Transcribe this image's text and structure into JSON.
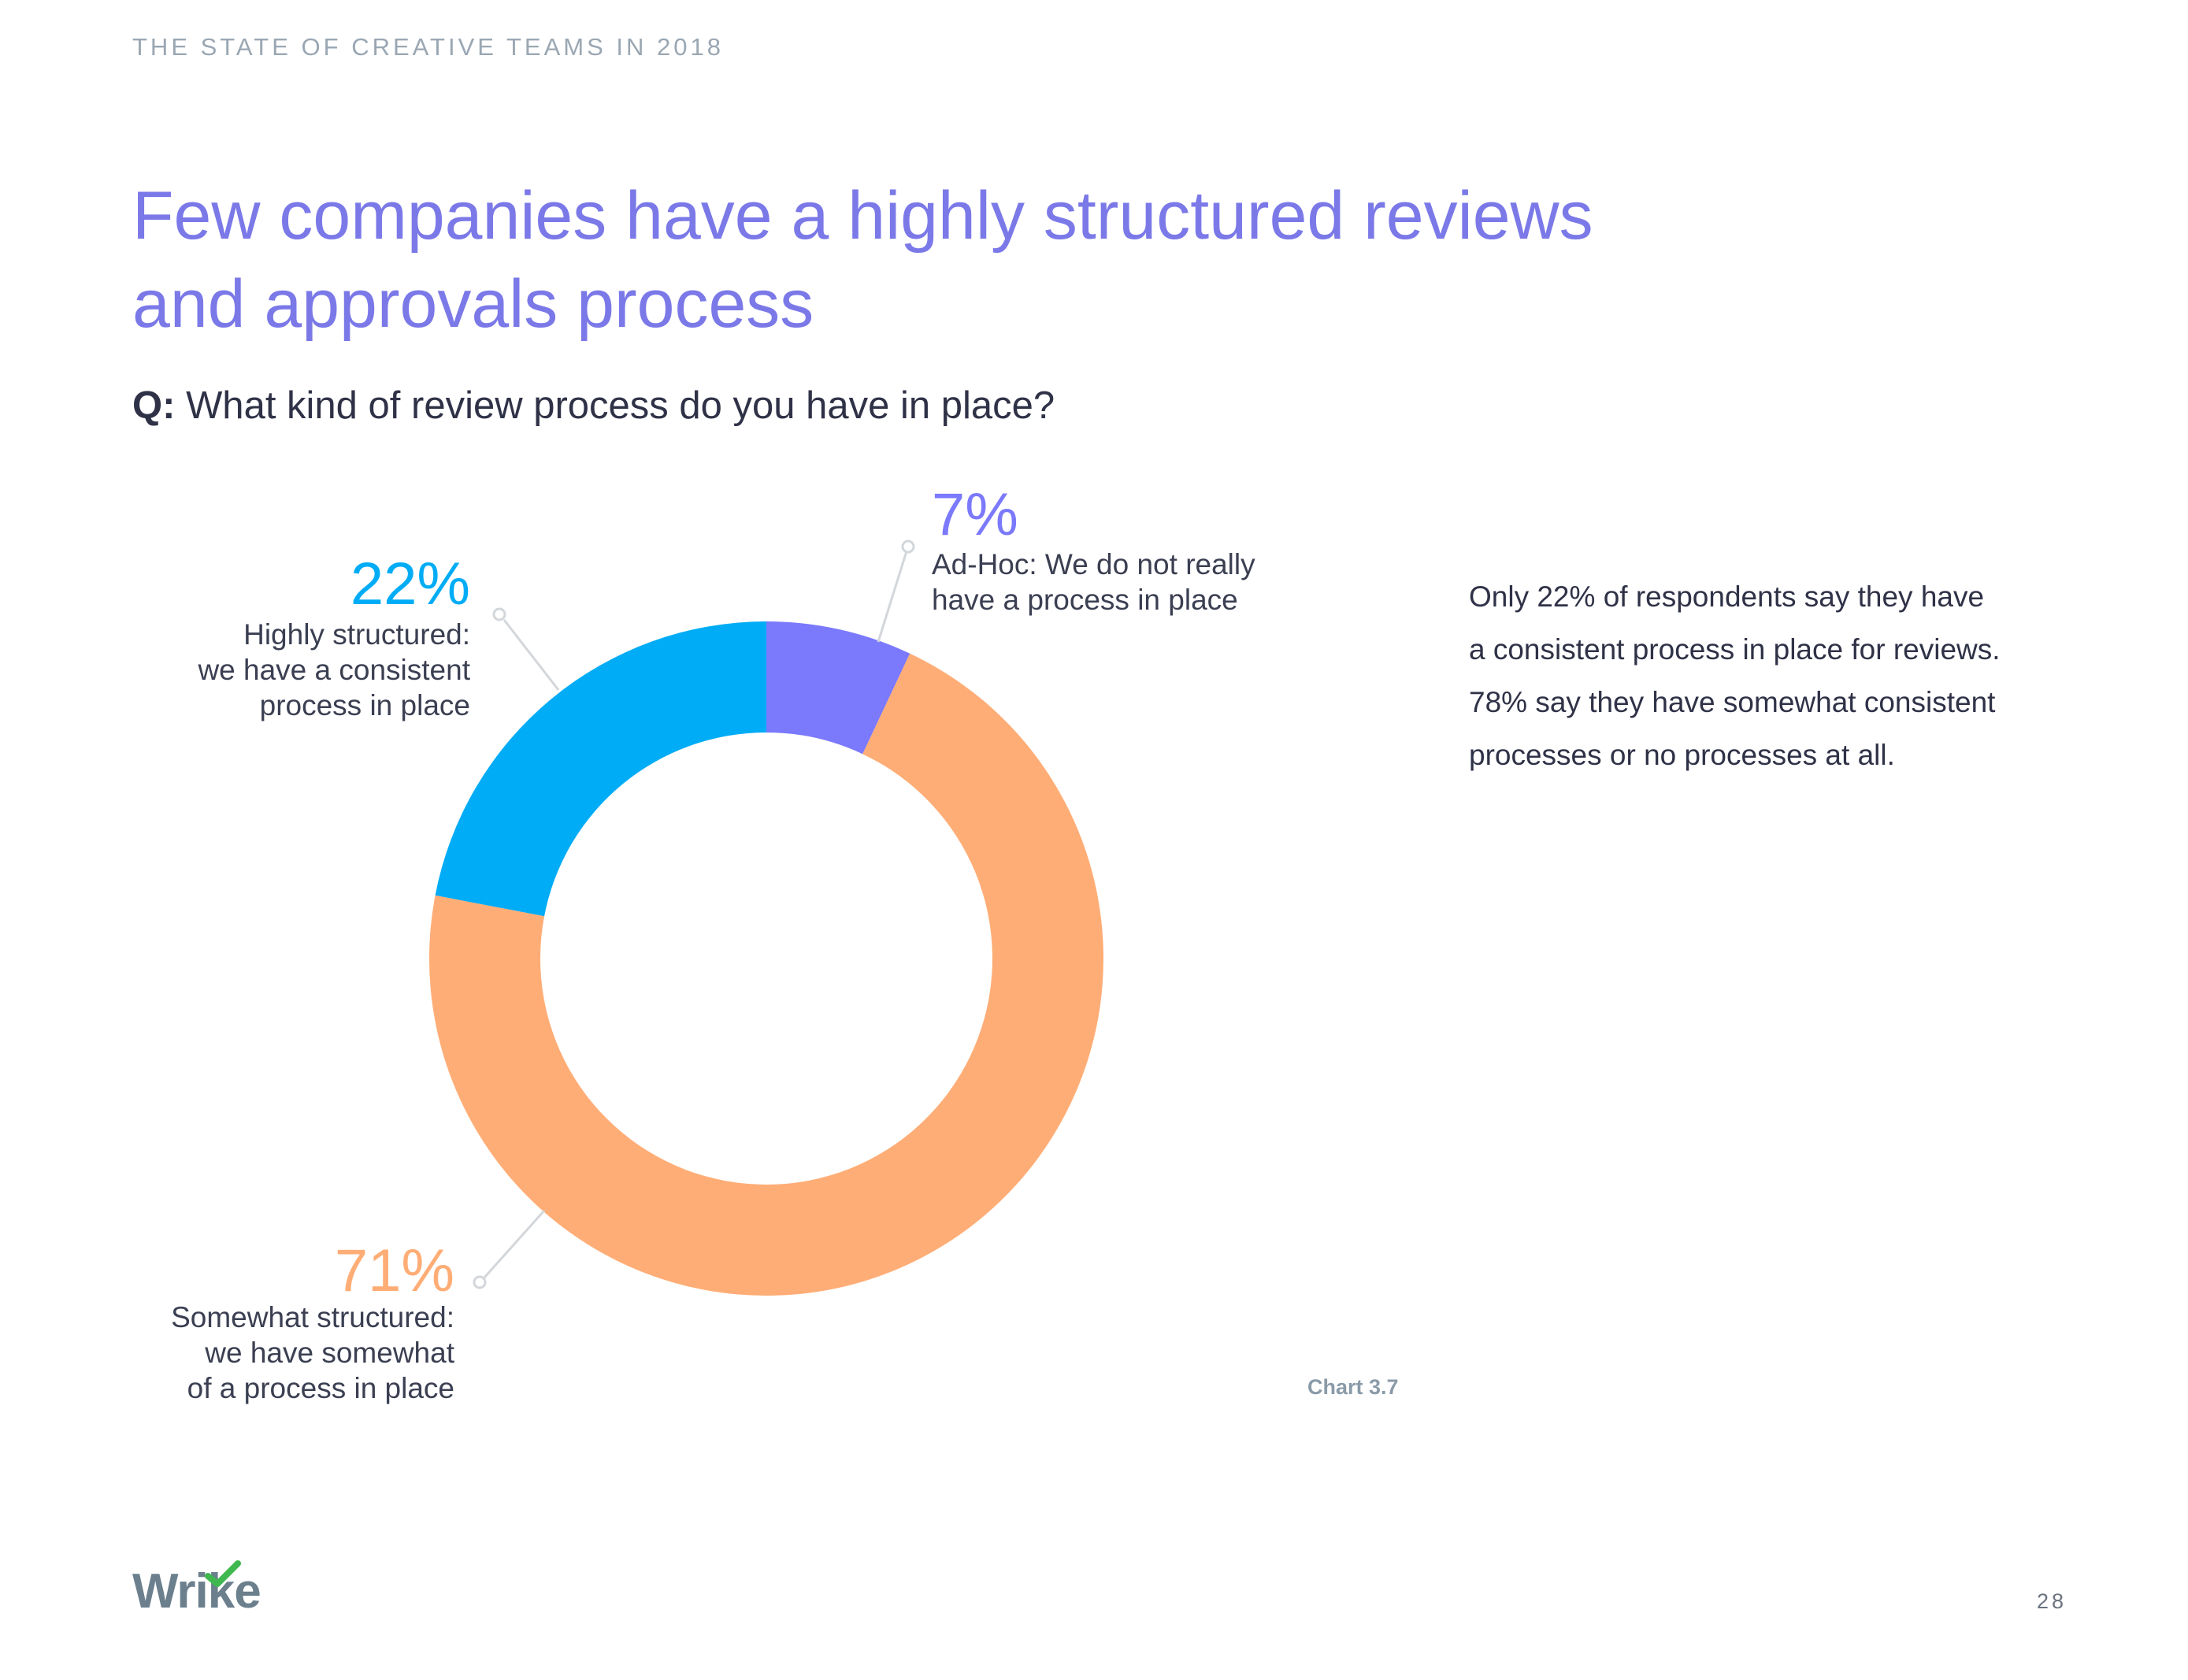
{
  "header": {
    "kicker": "THE STATE OF CREATIVE TEAMS IN 2018"
  },
  "title": {
    "line1": "Few companies have a highly structured reviews",
    "line2": "and approvals process"
  },
  "question": {
    "prefix": "Q:",
    "text": "What kind of review process do you have in place?"
  },
  "chart_data": {
    "type": "pie",
    "variant": "donut",
    "slices": [
      {
        "value": 7,
        "label": "7%",
        "category": [
          "Ad-Hoc: We do not really",
          "have a process in place"
        ],
        "color": "#7b79fc"
      },
      {
        "value": 71,
        "label": "71%",
        "category": [
          "Somewhat structured:",
          "we have somewhat",
          "of a process in place"
        ],
        "color": "#ffad76"
      },
      {
        "value": 22,
        "label": "22%",
        "category": [
          "Highly structured:",
          "we have a consistent",
          "process in place"
        ],
        "color": "#00acf5"
      }
    ],
    "start_angle": "12 o'clock",
    "direction": "clockwise",
    "legend": "callout labels with leader lines"
  },
  "insight": {
    "lines": [
      "Only 22% of respondents say they have",
      "a consistent process in place for reviews.",
      "78% say they have somewhat consistent",
      "processes or no processes at all."
    ]
  },
  "caption": "Chart 3.7",
  "footer": {
    "logo": "Wrike",
    "page_number": "28"
  },
  "colors": {
    "title": "#7b79e8",
    "text": "#2f3247",
    "muted": "#9aa7b3",
    "logo": "#6b7f8d",
    "logo_check": "#3fb84f"
  }
}
